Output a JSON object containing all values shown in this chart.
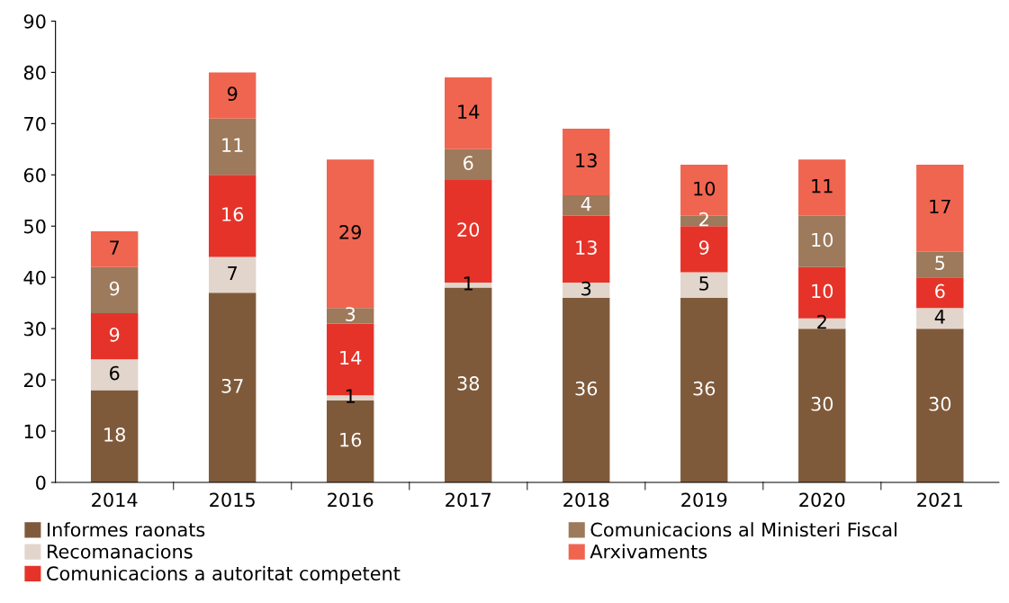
{
  "chart_data": {
    "type": "bar",
    "stacked": true,
    "categories": [
      "2014",
      "2015",
      "2016",
      "2017",
      "2018",
      "2019",
      "2020",
      "2021"
    ],
    "series": [
      {
        "name": "Informes raonats",
        "color": "#7f5a3a",
        "values": [
          18,
          37,
          16,
          38,
          36,
          36,
          30,
          30
        ]
      },
      {
        "name": "Recomanacions",
        "color": "#e2d5cc",
        "values": [
          6,
          7,
          1,
          1,
          3,
          5,
          2,
          4
        ]
      },
      {
        "name": "Comunicacions a autoritat competent",
        "color": "#e63329",
        "values": [
          9,
          16,
          14,
          20,
          13,
          9,
          10,
          6
        ]
      },
      {
        "name": "Comunicacions al Ministeri Fiscal",
        "color": "#9c7a5b",
        "values": [
          9,
          11,
          3,
          6,
          4,
          2,
          10,
          5
        ]
      },
      {
        "name": "Arxivaments",
        "color": "#ef6550",
        "values": [
          7,
          9,
          29,
          14,
          13,
          10,
          11,
          17
        ]
      }
    ],
    "ylim": [
      0,
      90
    ],
    "yticks": [
      0,
      10,
      20,
      30,
      40,
      50,
      60,
      70,
      80,
      90
    ],
    "data_labels": true,
    "grid": false,
    "legend": "bottom"
  }
}
